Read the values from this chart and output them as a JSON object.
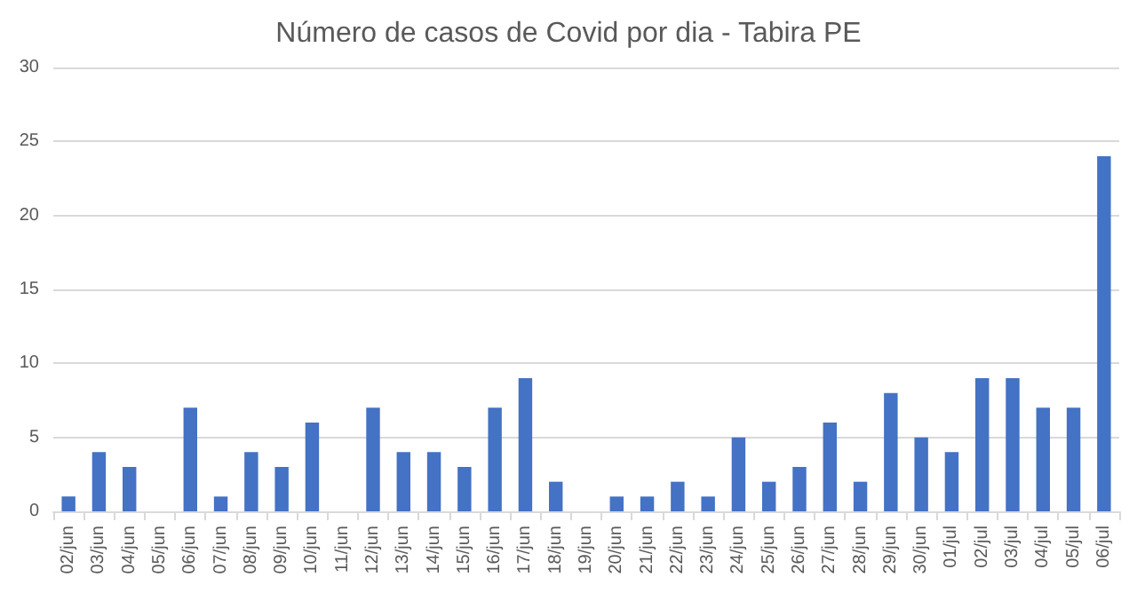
{
  "chart_data": {
    "type": "bar",
    "title": "Número de casos de Covid por dia - Tabira PE",
    "categories": [
      "02/jun",
      "03/jun",
      "04/jun",
      "05/jun",
      "06/jun",
      "07/jun",
      "08/jun",
      "09/jun",
      "10/jun",
      "11/jun",
      "12/jun",
      "13/jun",
      "14/jun",
      "15/jun",
      "16/jun",
      "17/jun",
      "18/jun",
      "19/jun",
      "20/jun",
      "21/jun",
      "22/jun",
      "23/jun",
      "24/jun",
      "25/jun",
      "26/jun",
      "27/jun",
      "28/jun",
      "29/jun",
      "30/jun",
      "01/jul",
      "02/jul",
      "03/jul",
      "04/jul",
      "05/jul",
      "06/jul"
    ],
    "values": [
      1,
      4,
      3,
      0,
      7,
      1,
      4,
      3,
      6,
      0,
      7,
      4,
      4,
      3,
      7,
      9,
      2,
      0,
      1,
      1,
      2,
      1,
      5,
      2,
      3,
      6,
      2,
      8,
      5,
      4,
      9,
      9,
      7,
      7,
      24
    ],
    "color": "#4472c4",
    "ylim": [
      0,
      30
    ],
    "yticks": [
      0,
      5,
      10,
      15,
      20,
      25,
      30
    ],
    "grid": "y"
  }
}
